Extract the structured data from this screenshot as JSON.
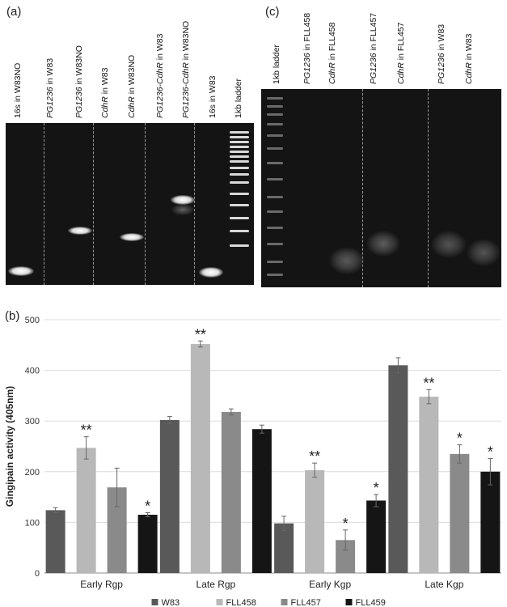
{
  "panel_a": {
    "label": "(a)",
    "lanes": [
      {
        "gene": "",
        "plain": "16s in W83NO"
      },
      {
        "gene": "PG1236",
        "plain": " in W83"
      },
      {
        "gene": "PG1236",
        "plain": " in W83NO"
      },
      {
        "gene": "CdhR",
        "plain": " in W83"
      },
      {
        "gene": "CdhR",
        "plain": " in W83NO"
      },
      {
        "gene": "PG1236-CdhR",
        "plain": " in W83"
      },
      {
        "gene": "PG1236-CdhR",
        "plain": " in W83NO"
      },
      {
        "gene": "",
        "plain": "16s in W83"
      },
      {
        "gene": "",
        "plain": "1kb ladder"
      }
    ]
  },
  "panel_c": {
    "label": "(c)",
    "lanes": [
      {
        "gene": "",
        "plain": "1kb ladder"
      },
      {
        "gene": "PG1236",
        "plain": " in FLL458"
      },
      {
        "gene": "CdhR",
        "plain": " in FLL458"
      },
      {
        "gene": "PG1236",
        "plain": " in FLL457"
      },
      {
        "gene": "CdhR",
        "plain": " in FLL457"
      },
      {
        "gene": "PG1236",
        "plain": " in W83"
      },
      {
        "gene": "CdhR",
        "plain": " in W83"
      }
    ]
  },
  "panel_b": {
    "label": "(b)"
  },
  "chart_data": {
    "type": "bar",
    "title": "",
    "xlabel": "",
    "ylabel": "Gingipain activity (405nm)",
    "ylim": [
      0,
      500
    ],
    "yticks": [
      0,
      100,
      200,
      300,
      400,
      500
    ],
    "grid": true,
    "legend_position": "bottom",
    "categories": [
      "Early Rgp",
      "Late Rgp",
      "Early Kgp",
      "Late Kgp"
    ],
    "series": [
      {
        "name": "W83",
        "color": "#595959",
        "values": [
          124,
          302,
          98,
          410
        ],
        "errors": [
          5,
          7,
          14,
          15
        ],
        "marks": [
          "",
          "",
          "",
          ""
        ]
      },
      {
        "name": "FLL458",
        "color": "#b8b8b8",
        "values": [
          247,
          452,
          203,
          348
        ],
        "errors": [
          22,
          6,
          14,
          14
        ],
        "marks": [
          "**",
          "**",
          "**",
          "**"
        ]
      },
      {
        "name": "FLL457",
        "color": "#8a8a8a",
        "values": [
          169,
          318,
          65,
          235
        ],
        "errors": [
          38,
          6,
          20,
          18
        ],
        "marks": [
          "",
          "",
          "*",
          "*"
        ]
      },
      {
        "name": "FLL459",
        "color": "#151515",
        "values": [
          115,
          284,
          143,
          200
        ],
        "errors": [
          4,
          8,
          12,
          26
        ],
        "marks": [
          "*",
          "",
          "*",
          "*"
        ]
      }
    ]
  }
}
